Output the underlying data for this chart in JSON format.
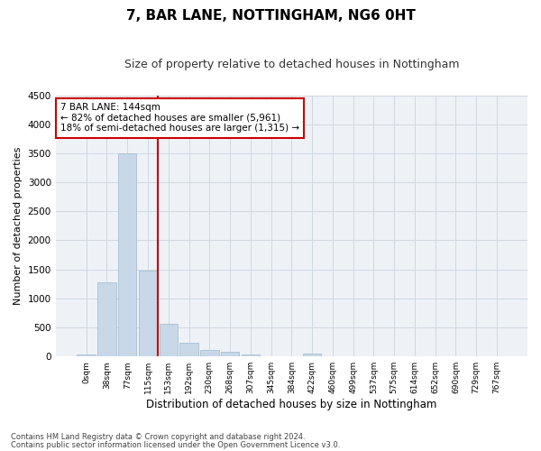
{
  "title": "7, BAR LANE, NOTTINGHAM, NG6 0HT",
  "subtitle": "Size of property relative to detached houses in Nottingham",
  "xlabel": "Distribution of detached houses by size in Nottingham",
  "ylabel": "Number of detached properties",
  "categories": [
    "0sqm",
    "38sqm",
    "77sqm",
    "115sqm",
    "153sqm",
    "192sqm",
    "230sqm",
    "268sqm",
    "307sqm",
    "345sqm",
    "384sqm",
    "422sqm",
    "460sqm",
    "499sqm",
    "537sqm",
    "575sqm",
    "614sqm",
    "652sqm",
    "690sqm",
    "729sqm",
    "767sqm"
  ],
  "values": [
    30,
    1270,
    3500,
    1480,
    560,
    230,
    110,
    75,
    40,
    5,
    3,
    50,
    3,
    0,
    0,
    0,
    0,
    0,
    0,
    0,
    0
  ],
  "bar_color": "#c8d8e8",
  "bar_edge_color": "#a0b8cc",
  "vline_color": "#cc0000",
  "vline_x": 3.5,
  "annotation_text": "7 BAR LANE: 144sqm\n← 82% of detached houses are smaller (5,961)\n18% of semi-detached houses are larger (1,315) →",
  "annotation_box_edgecolor": "#cc0000",
  "annotation_fontsize": 7.5,
  "ylim_max": 4500,
  "yticks": [
    0,
    500,
    1000,
    1500,
    2000,
    2500,
    3000,
    3500,
    4000,
    4500
  ],
  "grid_color": "#d0d8e0",
  "bg_color": "#eef2f7",
  "footer1": "Contains HM Land Registry data © Crown copyright and database right 2024.",
  "footer2": "Contains public sector information licensed under the Open Government Licence v3.0.",
  "title_fontsize": 11,
  "subtitle_fontsize": 9,
  "xlabel_fontsize": 8.5,
  "ylabel_fontsize": 8,
  "tick_fontsize": 7.5,
  "xtick_fontsize": 6.5
}
